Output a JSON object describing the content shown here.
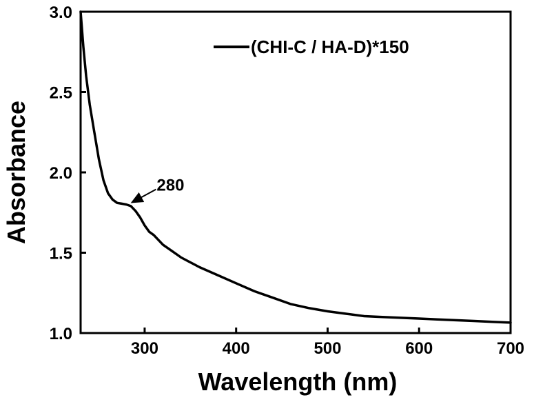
{
  "chart_data": {
    "type": "line",
    "title": "",
    "xlabel": "Wavelength (nm)",
    "ylabel": "Absorbance",
    "xlim": [
      230,
      700
    ],
    "ylim": [
      1.0,
      3.0
    ],
    "x_ticks": [
      300,
      400,
      500,
      600,
      700
    ],
    "x_tick_labels": [
      "300",
      "400",
      "500",
      "600",
      "700"
    ],
    "y_ticks": [
      1.0,
      1.5,
      2.0,
      2.5,
      3.0
    ],
    "y_tick_labels": [
      "1.0",
      "1.5",
      "2.0",
      "2.5",
      "3.0"
    ],
    "grid": false,
    "legend_position": "top-right",
    "series": [
      {
        "name": "(CHI-C / HA-D)*150",
        "color": "#000000",
        "x": [
          230,
          233,
          236,
          240,
          245,
          250,
          255,
          260,
          265,
          270,
          275,
          280,
          285,
          290,
          295,
          300,
          305,
          310,
          320,
          330,
          340,
          350,
          360,
          380,
          400,
          420,
          440,
          460,
          480,
          500,
          520,
          540,
          560,
          580,
          600,
          620,
          640,
          660,
          680,
          700
        ],
        "y": [
          3.0,
          2.78,
          2.6,
          2.42,
          2.25,
          2.08,
          1.95,
          1.87,
          1.83,
          1.81,
          1.805,
          1.8,
          1.79,
          1.76,
          1.72,
          1.67,
          1.63,
          1.61,
          1.55,
          1.51,
          1.47,
          1.44,
          1.41,
          1.36,
          1.31,
          1.26,
          1.22,
          1.18,
          1.155,
          1.135,
          1.12,
          1.105,
          1.1,
          1.095,
          1.09,
          1.085,
          1.08,
          1.075,
          1.07,
          1.065
        ]
      }
    ],
    "annotations": [
      {
        "text": "280",
        "x": 280,
        "y": 1.8
      }
    ]
  }
}
